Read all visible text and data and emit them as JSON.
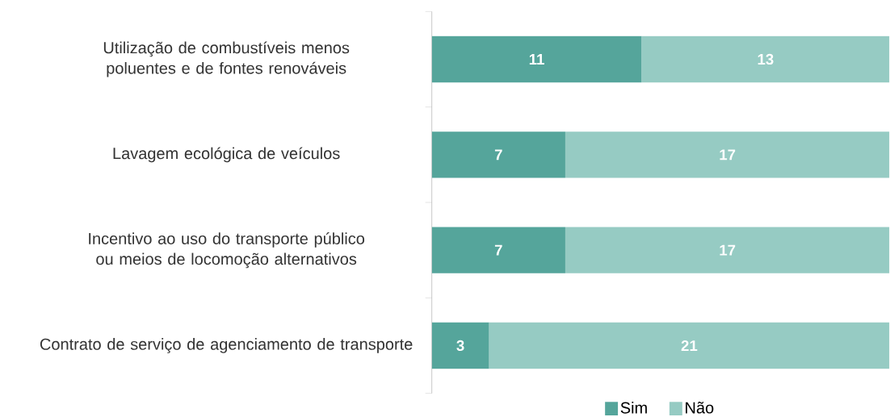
{
  "chart_data": {
    "type": "bar",
    "orientation": "horizontal",
    "stacked": true,
    "data_labels": true,
    "legend": "bottom",
    "categories": [
      "Utilização de combustíveis menos poluentes e de fontes renováveis",
      "Lavagem ecológica de veículos",
      "Incentivo ao uso do transporte público ou meios de locomoção alternativos",
      "Contrato de serviço de agenciamento de transporte"
    ],
    "series": [
      {
        "name": "Sim",
        "color": "#55a59b",
        "values": [
          11,
          7,
          7,
          3
        ]
      },
      {
        "name": "Não",
        "color": "#96cbc3",
        "values": [
          13,
          17,
          17,
          21
        ]
      }
    ]
  }
}
